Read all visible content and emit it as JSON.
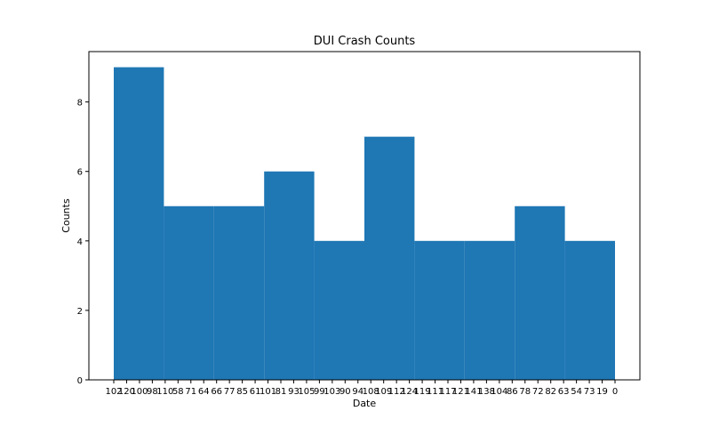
{
  "chart_data": {
    "type": "bar",
    "title": "DUI Crash Counts",
    "xlabel": "Date",
    "ylabel": "Counts",
    "ylim": [
      0,
      9.45
    ],
    "yticks": [
      0,
      2,
      4,
      6,
      8
    ],
    "color": "#1f77b4",
    "bins": [
      {
        "start": 0,
        "end": 2,
        "value": 9
      },
      {
        "start": 2,
        "end": 4,
        "value": 5
      },
      {
        "start": 4,
        "end": 6,
        "value": 5
      },
      {
        "start": 6,
        "end": 8,
        "value": 6
      },
      {
        "start": 8,
        "end": 10,
        "value": 4
      },
      {
        "start": 10,
        "end": 12,
        "value": 7
      },
      {
        "start": 12,
        "end": 14,
        "value": 4
      },
      {
        "start": 14,
        "end": 16,
        "value": 4
      },
      {
        "start": 16,
        "end": 18,
        "value": 5
      },
      {
        "start": 18,
        "end": 20,
        "value": 4
      }
    ],
    "x_range": [
      0,
      20
    ],
    "categories": [
      "102",
      "120",
      "100",
      "98",
      "110",
      "58",
      "71",
      "64",
      "66",
      "77",
      "85",
      "61",
      "101",
      "81",
      "93",
      "105",
      "99",
      "103",
      "90",
      "94",
      "108",
      "109",
      "112",
      "124",
      "119",
      "111",
      "117",
      "121",
      "141",
      "138",
      "104",
      "86",
      "78",
      "72",
      "82",
      "63",
      "54",
      "73",
      "19",
      "0"
    ]
  }
}
